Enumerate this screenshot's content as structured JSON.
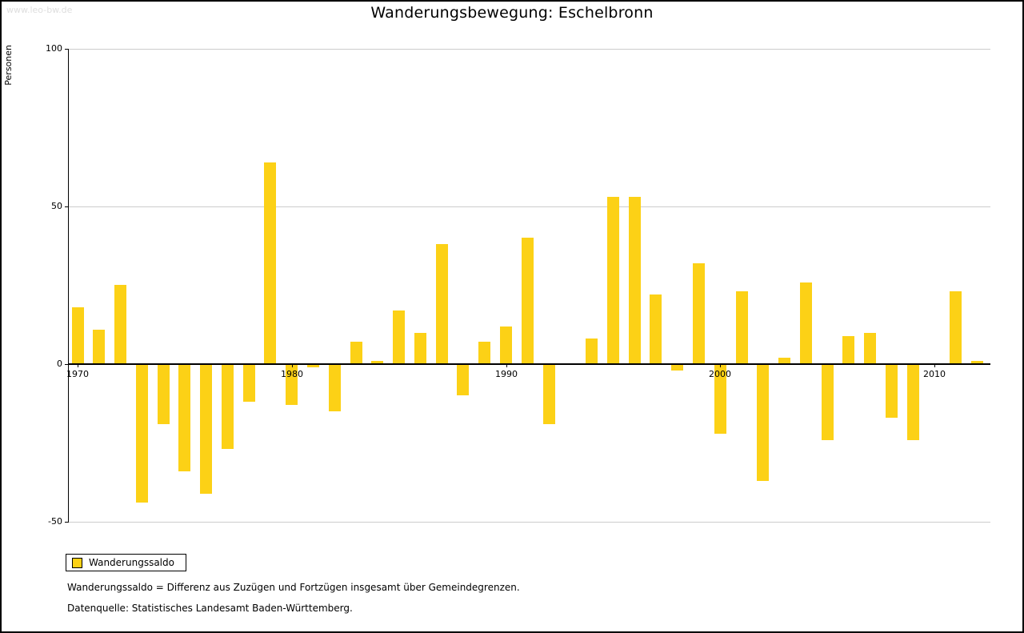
{
  "watermark": "www.leo-bw.de",
  "footnotes": [
    "Wanderungssaldo = Differenz aus Zuzügen und Fortzügen insgesamt über Gemeindegrenzen.",
    "Datenquelle: Statistisches Landesamt Baden-Württemberg."
  ],
  "colors": {
    "bar": "#FCD116",
    "grid": "#cccccc",
    "axis": "#000000",
    "watermark": "#dedede"
  },
  "chart_data": {
    "type": "bar",
    "title": "Wanderungsbewegung: Eschelbronn",
    "ylabel": "Personen",
    "xlabel": "",
    "series_name": "Wanderungssaldo",
    "ylim": [
      -50,
      100
    ],
    "yticks": [
      100,
      50,
      0,
      -50
    ],
    "xticks": [
      1970,
      1980,
      1990,
      2000,
      2010
    ],
    "grid": true,
    "legend_position": "bottom-left",
    "years": [
      1970,
      1971,
      1972,
      1973,
      1974,
      1975,
      1976,
      1977,
      1978,
      1979,
      1980,
      1981,
      1982,
      1983,
      1984,
      1985,
      1986,
      1987,
      1988,
      1989,
      1990,
      1991,
      1992,
      1993,
      1994,
      1995,
      1996,
      1997,
      1998,
      1999,
      2000,
      2001,
      2002,
      2003,
      2004,
      2005,
      2006,
      2007,
      2008,
      2009,
      2010,
      2011,
      2012
    ],
    "values": [
      18,
      11,
      25,
      -44,
      -19,
      -34,
      -41,
      -27,
      -12,
      64,
      -13,
      -1,
      -15,
      7,
      1,
      17,
      10,
      38,
      -10,
      7,
      12,
      40,
      -19,
      0,
      8,
      53,
      53,
      22,
      -2,
      32,
      -22,
      23,
      -37,
      2,
      26,
      -24,
      9,
      10,
      -17,
      -24,
      0,
      23,
      1
    ]
  }
}
